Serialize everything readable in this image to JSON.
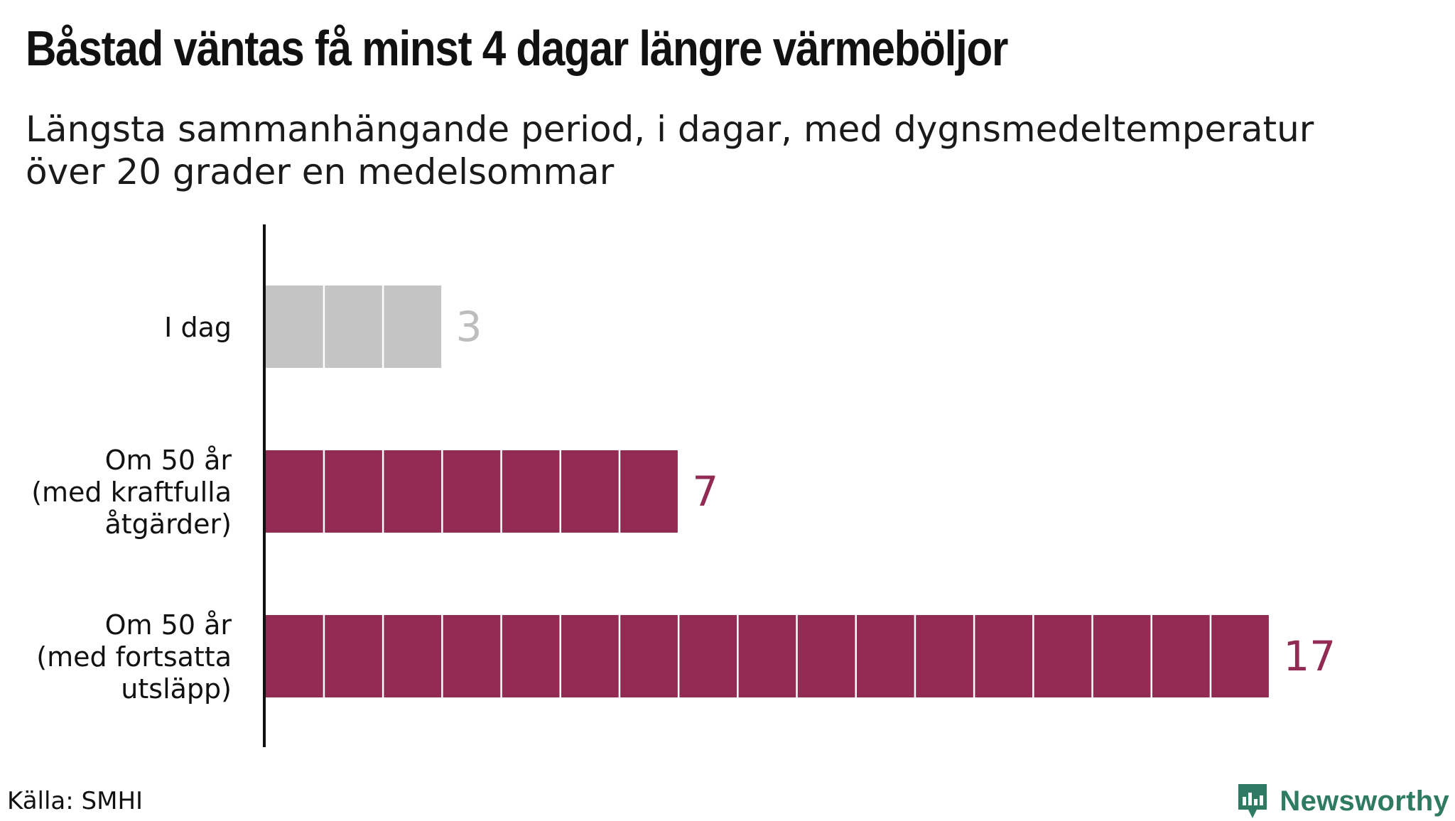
{
  "title": "Båstad väntas få minst 4 dagar längre värmeböljor",
  "subtitle_lines": [
    "Längsta sammanhängande period, i dagar, med dygnsmedeltemperatur",
    "över 20 grader en medelsommar"
  ],
  "source": "Källa: SMHI",
  "brand": {
    "name": "Newsworthy",
    "icon": "newsworthy-logo-icon",
    "color": "#2f7a63"
  },
  "colors": {
    "today": "#c4c4c4",
    "future": "#922b54",
    "axis": "#111111",
    "label_today": "#bdbdbd"
  },
  "chart_data": {
    "type": "bar",
    "orientation": "horizontal",
    "categories": [
      [
        "I dag"
      ],
      [
        "Om 50 år",
        "(med kraftfulla",
        "åtgärder)"
      ],
      [
        "Om 50 år",
        "(med fortsatta",
        "utsläpp)"
      ]
    ],
    "values": [
      3,
      7,
      17
    ],
    "value_labels": [
      "3",
      "7",
      "17"
    ],
    "unit": "dagar",
    "xlim": [
      0,
      17
    ],
    "grid": false,
    "segmented_by_unit": true
  }
}
